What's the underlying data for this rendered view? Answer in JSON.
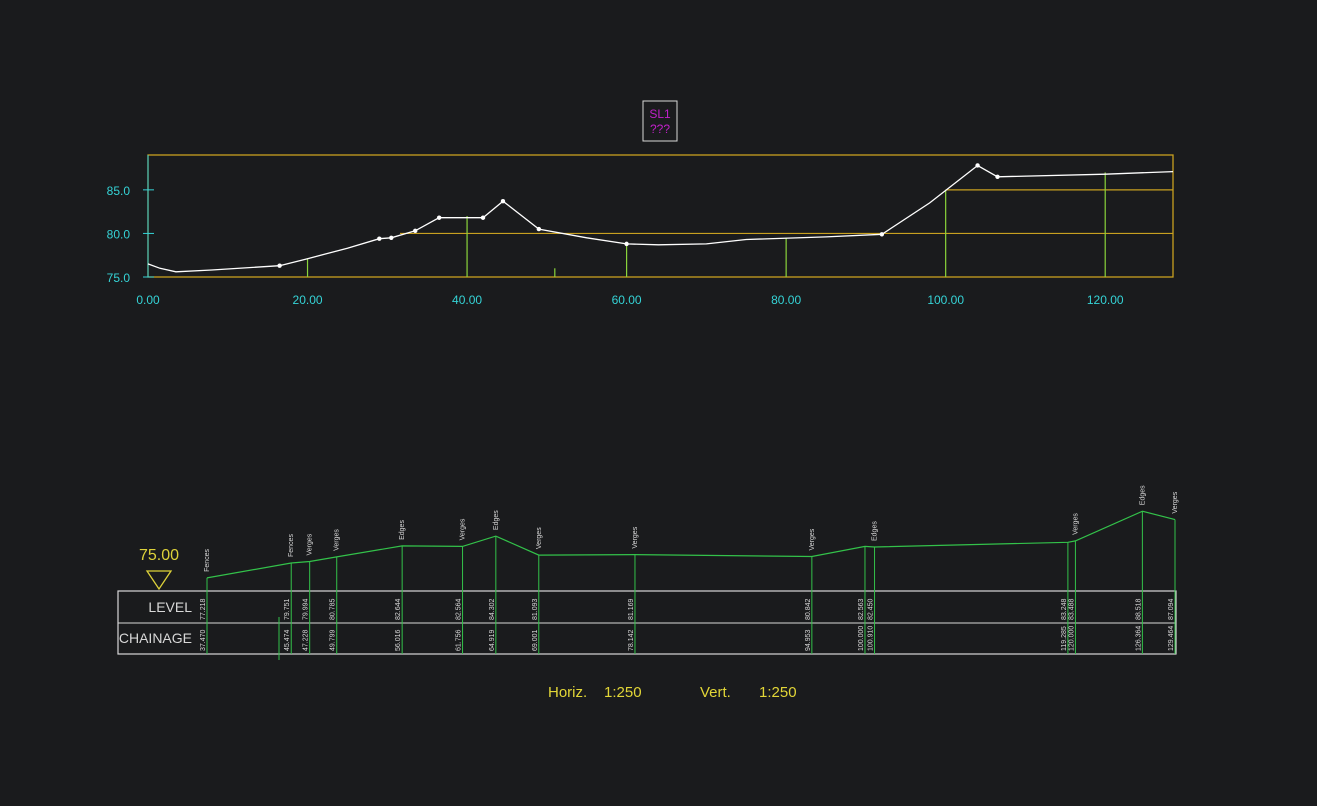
{
  "tag": {
    "line1": "SL1",
    "line2": "???"
  },
  "colors": {
    "background": "#1a1b1d",
    "frame": "#c8a020",
    "axis_text": "#35d3d6",
    "profile": "#ffffff",
    "chainage_marker": "#8ad43b",
    "section_line": "#33c24a",
    "table_border": "#d8d8d8",
    "datum": "#ddd23a",
    "tag": "#c020c8",
    "scale_text": "#e2d637"
  },
  "long_section": {
    "y_ticks": [
      "75.0",
      "80.0",
      "85.0"
    ],
    "x_ticks": [
      "0.00",
      "20.00",
      "40.00",
      "60.00",
      "80.00",
      "100.00",
      "120.00"
    ],
    "profile_points": [
      [
        0,
        76.5
      ],
      [
        1.5,
        76.0
      ],
      [
        3.5,
        75.6
      ],
      [
        8,
        75.8
      ],
      [
        16.5,
        76.3
      ],
      [
        20,
        77.1
      ],
      [
        25,
        78.3
      ],
      [
        29,
        79.4
      ],
      [
        30.5,
        79.5
      ],
      [
        33.5,
        80.3
      ],
      [
        36.5,
        81.8
      ],
      [
        42,
        81.8
      ],
      [
        44.5,
        83.7
      ],
      [
        49,
        80.5
      ],
      [
        55,
        79.5
      ],
      [
        60,
        78.8
      ],
      [
        64,
        78.7
      ],
      [
        70,
        78.8
      ],
      [
        75,
        79.3
      ],
      [
        85,
        79.6
      ],
      [
        92,
        79.9
      ],
      [
        98,
        83.5
      ],
      [
        104,
        87.8
      ],
      [
        106.5,
        86.5
      ],
      [
        120,
        86.8
      ],
      [
        128.5,
        87.1
      ]
    ],
    "survey_point_chainages": [
      16.5,
      29,
      30.5,
      33.5,
      36.5,
      42,
      44.5,
      49,
      60,
      92,
      104,
      106.5
    ],
    "chainage_markers": [
      {
        "x": 20,
        "level": 77.1
      },
      {
        "x": 40,
        "level": 82
      },
      {
        "x": 51,
        "level": 76
      },
      {
        "x": 60,
        "level": 78.8
      },
      {
        "x": 80,
        "level": 79.5
      },
      {
        "x": 100,
        "level": 85
      },
      {
        "x": 120,
        "level": 87
      }
    ]
  },
  "cross_section": {
    "datum_label": "75.00",
    "row_labels": {
      "level": "LEVEL",
      "chainage": "CHAINAGE"
    },
    "stations": [
      {
        "code": "Fences",
        "level": "77.218",
        "chainage": "37.470"
      },
      {
        "code": "Fences",
        "level": "79.751",
        "chainage": "45.474"
      },
      {
        "code": "Verges",
        "level": "79.994",
        "chainage": "47.228"
      },
      {
        "code": "Verges",
        "level": "80.785",
        "chainage": "49.799"
      },
      {
        "code": "Edges",
        "level": "82.644",
        "chainage": "56.016"
      },
      {
        "code": "Verges",
        "level": "82.564",
        "chainage": "61.756"
      },
      {
        "code": "Edges",
        "level": "84.302",
        "chainage": "64.919"
      },
      {
        "code": "Verges",
        "level": "81.093",
        "chainage": "69.001"
      },
      {
        "code": "Verges",
        "level": "81.169",
        "chainage": "78.142"
      },
      {
        "code": "Verges",
        "level": "80.842",
        "chainage": "94.953"
      },
      {
        "code": "",
        "level": "82.563",
        "chainage": "100.000"
      },
      {
        "code": "Edges",
        "level": "82.450",
        "chainage": "100.910"
      },
      {
        "code": "",
        "level": "83.248",
        "chainage": "119.285"
      },
      {
        "code": "Verges",
        "level": "83.488",
        "chainage": "120.000"
      },
      {
        "code": "Edges",
        "level": "88.518",
        "chainage": "126.364"
      },
      {
        "code": "Verges",
        "level": "87.094",
        "chainage": "129.464"
      }
    ]
  },
  "scale": {
    "horiz_label": "Horiz.",
    "horiz_value": "1:250",
    "vert_label": "Vert.",
    "vert_value": "1:250"
  }
}
